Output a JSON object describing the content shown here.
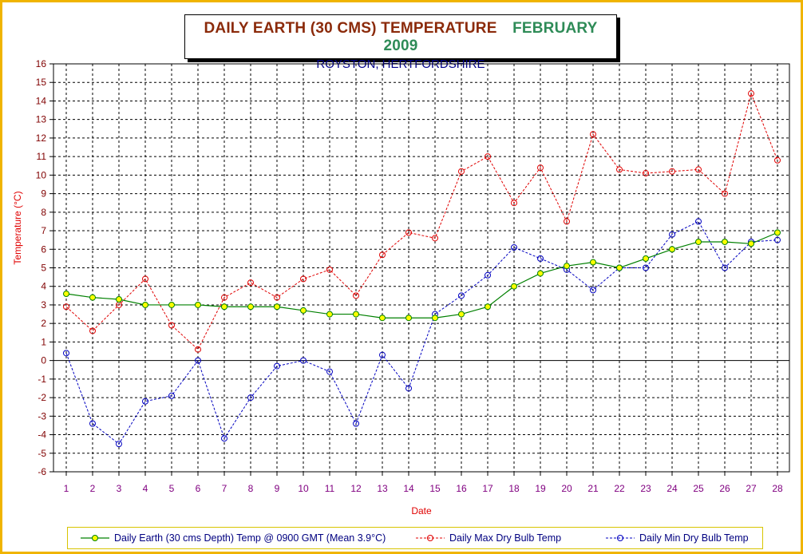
{
  "title": {
    "main": "DAILY EARTH (30 CMS) TEMPERATURE",
    "month": "FEBRUARY 2009",
    "subtitle": "ROYSTON, HERTFORDSHIRE"
  },
  "colors": {
    "frame": "#f0b400",
    "earth_series": "#008000",
    "earth_marker": "#ffff00",
    "max_series": "#e00000",
    "min_series": "#0000c0",
    "title_main": "#8b2a0a",
    "title_month": "#2e8b57",
    "subtitle": "#00008b"
  },
  "chart_data": {
    "type": "line",
    "title": "DAILY EARTH (30 CMS) TEMPERATURE   FEBRUARY 2009",
    "subtitle": "ROYSTON, HERTFORDSHIRE",
    "xlabel": "Date",
    "ylabel": "Temperature (°C)",
    "ylim": [
      -6,
      16
    ],
    "ytick_step": 1,
    "grid": true,
    "legend_position": "bottom",
    "x": [
      1,
      2,
      3,
      4,
      5,
      6,
      7,
      8,
      9,
      10,
      11,
      12,
      13,
      14,
      15,
      16,
      17,
      18,
      19,
      20,
      21,
      22,
      23,
      24,
      25,
      26,
      27,
      28
    ],
    "series": [
      {
        "name": "Daily Earth (30 cms Depth) Temp @ 0900 GMT (Mean 3.9°C)",
        "style": "solid",
        "values": [
          3.6,
          3.4,
          3.3,
          3.0,
          3.0,
          3.0,
          2.9,
          2.9,
          2.9,
          2.7,
          2.5,
          2.5,
          2.3,
          2.3,
          2.3,
          2.5,
          2.9,
          4.0,
          4.7,
          5.1,
          5.3,
          5.0,
          5.5,
          6.0,
          6.4,
          6.4,
          6.3,
          6.9
        ]
      },
      {
        "name": "Daily Max Dry Bulb Temp",
        "style": "dashed",
        "values": [
          2.9,
          1.6,
          3.0,
          4.4,
          1.9,
          0.6,
          3.4,
          4.2,
          3.4,
          4.4,
          4.9,
          3.5,
          5.7,
          6.9,
          6.6,
          10.2,
          11.0,
          8.5,
          10.4,
          7.5,
          12.2,
          10.3,
          10.1,
          10.2,
          10.3,
          9.0,
          14.4,
          10.8
        ]
      },
      {
        "name": "Daily Min Dry Bulb Temp",
        "style": "dashed",
        "values": [
          0.4,
          -3.4,
          -4.5,
          -2.2,
          -1.9,
          0.0,
          -4.2,
          -2.0,
          -0.3,
          0.0,
          -0.6,
          -3.4,
          0.3,
          -1.5,
          2.5,
          3.5,
          4.6,
          6.1,
          5.5,
          4.9,
          3.8,
          5.0,
          5.0,
          6.8,
          7.5,
          5.0,
          6.4,
          6.5
        ]
      }
    ]
  }
}
